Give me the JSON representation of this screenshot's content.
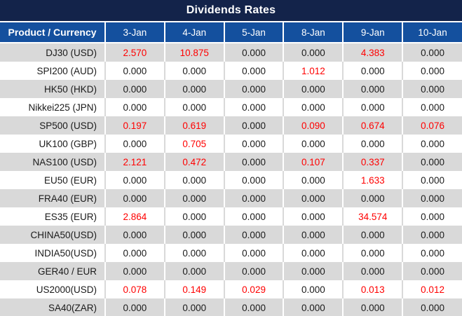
{
  "title": "Dividends Rates",
  "colors": {
    "navy": "#13234a",
    "header_blue": "#14509e",
    "row_gray": "#d9d9d9",
    "value_red": "#ff0000",
    "value_dark": "#1a1a1a"
  },
  "table": {
    "product_header": "Product / Currency",
    "date_columns": [
      "3-Jan",
      "4-Jan",
      "5-Jan",
      "8-Jan",
      "9-Jan",
      "10-Jan"
    ],
    "rows": [
      {
        "product": "DJ30 (USD)",
        "values": [
          "2.570",
          "10.875",
          "0.000",
          "0.000",
          "4.383",
          "0.000"
        ]
      },
      {
        "product": "SPI200 (AUD)",
        "values": [
          "0.000",
          "0.000",
          "0.000",
          "1.012",
          "0.000",
          "0.000"
        ]
      },
      {
        "product": "HK50 (HKD)",
        "values": [
          "0.000",
          "0.000",
          "0.000",
          "0.000",
          "0.000",
          "0.000"
        ]
      },
      {
        "product": "Nikkei225 (JPN)",
        "values": [
          "0.000",
          "0.000",
          "0.000",
          "0.000",
          "0.000",
          "0.000"
        ]
      },
      {
        "product": "SP500 (USD)",
        "values": [
          "0.197",
          "0.619",
          "0.000",
          "0.090",
          "0.674",
          "0.076"
        ]
      },
      {
        "product": "UK100 (GBP)",
        "values": [
          "0.000",
          "0.705",
          "0.000",
          "0.000",
          "0.000",
          "0.000"
        ]
      },
      {
        "product": "NAS100 (USD)",
        "values": [
          "2.121",
          "0.472",
          "0.000",
          "0.107",
          "0.337",
          "0.000"
        ]
      },
      {
        "product": "EU50 (EUR)",
        "values": [
          "0.000",
          "0.000",
          "0.000",
          "0.000",
          "1.633",
          "0.000"
        ]
      },
      {
        "product": "FRA40 (EUR)",
        "values": [
          "0.000",
          "0.000",
          "0.000",
          "0.000",
          "0.000",
          "0.000"
        ]
      },
      {
        "product": "ES35 (EUR)",
        "values": [
          "2.864",
          "0.000",
          "0.000",
          "0.000",
          "34.574",
          "0.000"
        ]
      },
      {
        "product": "CHINA50(USD)",
        "values": [
          "0.000",
          "0.000",
          "0.000",
          "0.000",
          "0.000",
          "0.000"
        ]
      },
      {
        "product": "INDIA50(USD)",
        "values": [
          "0.000",
          "0.000",
          "0.000",
          "0.000",
          "0.000",
          "0.000"
        ]
      },
      {
        "product": "GER40 / EUR",
        "values": [
          "0.000",
          "0.000",
          "0.000",
          "0.000",
          "0.000",
          "0.000"
        ]
      },
      {
        "product": "US2000(USD)",
        "values": [
          "0.078",
          "0.149",
          "0.029",
          "0.000",
          "0.013",
          "0.012"
        ]
      },
      {
        "product": "SA40(ZAR)",
        "values": [
          "0.000",
          "0.000",
          "0.000",
          "0.000",
          "0.000",
          "0.000"
        ]
      }
    ]
  }
}
